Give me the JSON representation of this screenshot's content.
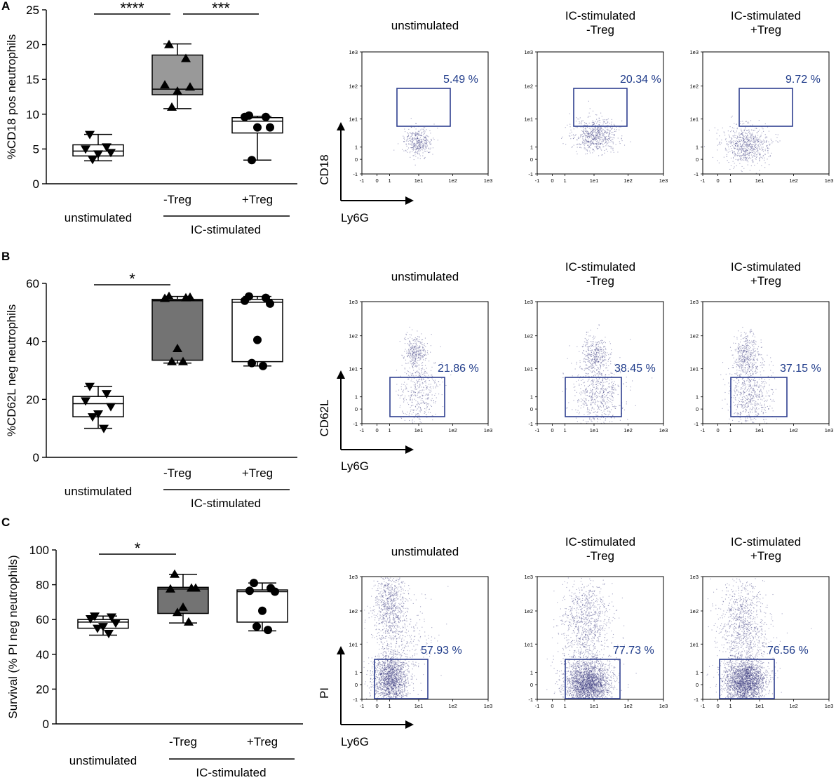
{
  "chart_data": [
    {
      "type": "boxplot",
      "panel_label": "A",
      "ylabel": "%CD18 pos neutrophils",
      "ylim": [
        0,
        25
      ],
      "yticks": [
        0,
        5,
        10,
        15,
        20,
        25
      ],
      "groups": [
        {
          "label": "unstimulated",
          "fill": "#ffffff",
          "marker": "triangle-down",
          "box": {
            "min": 3.3,
            "q1": 4.0,
            "median": 4.7,
            "q3": 5.6,
            "max": 7.1
          },
          "points": [
            7.1,
            5.3,
            5.0,
            4.5,
            4.3,
            3.5
          ]
        },
        {
          "label": "-Treg",
          "fill": "#999999",
          "marker": "triangle-up",
          "box": {
            "min": 10.8,
            "q1": 12.8,
            "median": 13.6,
            "q3": 18.5,
            "max": 20.1
          },
          "points": [
            20.0,
            18.0,
            14.2,
            13.9,
            13.3,
            11.0
          ]
        },
        {
          "label": "+Treg",
          "fill": "#ffffff",
          "marker": "circle",
          "box": {
            "min": 3.4,
            "q1": 7.3,
            "median": 9.0,
            "q3": 9.5,
            "max": 9.7
          },
          "points": [
            9.8,
            9.6,
            9.6,
            8.1,
            8.1,
            3.4
          ]
        }
      ],
      "group_label": "IC-stimulated",
      "significance": [
        {
          "from": 0,
          "to": 1,
          "label": "****"
        },
        {
          "from": 1,
          "to": 2,
          "label": "***"
        }
      ]
    },
    {
      "type": "boxplot",
      "panel_label": "B",
      "ylabel": "%CD62L neg neutrophils",
      "ylim": [
        0,
        60
      ],
      "yticks": [
        0,
        20,
        40,
        60
      ],
      "groups": [
        {
          "label": "unstimulated",
          "fill": "#ffffff",
          "marker": "triangle-down",
          "box": {
            "min": 10.0,
            "q1": 14.0,
            "median": 18.5,
            "q3": 21.0,
            "max": 24.5
          },
          "points": [
            24.5,
            22.0,
            19.5,
            17.5,
            15.0,
            14.0,
            10.0
          ]
        },
        {
          "label": "-Treg",
          "fill": "#737373",
          "marker": "triangle-up",
          "box": {
            "min": 32.5,
            "q1": 33.5,
            "median": 54.0,
            "q3": 54.5,
            "max": 55.5
          },
          "points": [
            55.5,
            55.0,
            54.8,
            55.2,
            37.5,
            33.0,
            33.0
          ]
        },
        {
          "label": "+Treg",
          "fill": "#ffffff",
          "marker": "circle",
          "box": {
            "min": 31.5,
            "q1": 33.0,
            "median": 53.5,
            "q3": 54.5,
            "max": 55.5
          },
          "points": [
            55.5,
            55.0,
            54.0,
            53.0,
            40.5,
            32.5,
            31.5
          ]
        }
      ],
      "group_label": "IC-stimulated",
      "significance": [
        {
          "from": 0,
          "to": 1,
          "label": "*"
        }
      ]
    },
    {
      "type": "boxplot",
      "panel_label": "C",
      "ylabel": "Survival (% PI neg neutrophils)",
      "ylim": [
        0,
        100
      ],
      "yticks": [
        0,
        20,
        40,
        60,
        80,
        100
      ],
      "groups": [
        {
          "label": "unstimulated",
          "fill": "#ffffff",
          "marker": "triangle-down",
          "box": {
            "min": 51.0,
            "q1": 55.0,
            "median": 58.5,
            "q3": 60.0,
            "max": 62.0
          },
          "points": [
            62.0,
            61.5,
            60.5,
            58.0,
            56.0,
            55.0,
            52.0
          ]
        },
        {
          "label": "-Treg",
          "fill": "#737373",
          "marker": "triangle-up",
          "box": {
            "min": 58.0,
            "q1": 63.5,
            "median": 77.5,
            "q3": 78.5,
            "max": 86.0
          },
          "points": [
            86.0,
            78.0,
            77.5,
            78.0,
            67.0,
            64.0,
            58.5
          ]
        },
        {
          "label": "+Treg",
          "fill": "#ffffff",
          "marker": "circle",
          "box": {
            "min": 53.5,
            "q1": 58.5,
            "median": 76.0,
            "q3": 77.0,
            "max": 81.0
          },
          "points": [
            81.0,
            78.0,
            76.5,
            76.0,
            65.0,
            56.0,
            54.0
          ]
        }
      ],
      "group_label": "IC-stimulated",
      "significance": [
        {
          "from": 0,
          "to": 1,
          "label": "*"
        }
      ]
    }
  ],
  "flow_plots": {
    "axis_ticks": [
      "-1",
      "0",
      "1",
      "1e1",
      "1e2",
      "1e3"
    ],
    "xlabel": "Ly6G",
    "rows": [
      {
        "ylabel": "CD18",
        "plots": [
          {
            "title_line1": "unstimulated",
            "title_line2": "",
            "gate_percent": "5.49 %"
          },
          {
            "title_line1": "IC-stimulated",
            "title_line2": "-Treg",
            "gate_percent": "20.34 %"
          },
          {
            "title_line1": "IC-stimulated",
            "title_line2": "+Treg",
            "gate_percent": "9.72 %"
          }
        ]
      },
      {
        "ylabel": "CD62L",
        "plots": [
          {
            "title_line1": "unstimulated",
            "title_line2": "",
            "gate_percent": "21.86 %"
          },
          {
            "title_line1": "IC-stimulated",
            "title_line2": "-Treg",
            "gate_percent": "38.45 %"
          },
          {
            "title_line1": "IC-stimulated",
            "title_line2": "+Treg",
            "gate_percent": "37.15 %"
          }
        ]
      },
      {
        "ylabel": "PI",
        "plots": [
          {
            "title_line1": "unstimulated",
            "title_line2": "",
            "gate_percent": "57.93 %"
          },
          {
            "title_line1": "IC-stimulated",
            "title_line2": "-Treg",
            "gate_percent": "77.73 %"
          },
          {
            "title_line1": "IC-stimulated",
            "title_line2": "+Treg",
            "gate_percent": "76.56 %"
          }
        ]
      }
    ]
  },
  "colors": {
    "gate": "#2e3f8f",
    "gate_text": "#1f3b8a",
    "dots": "#33337a"
  }
}
